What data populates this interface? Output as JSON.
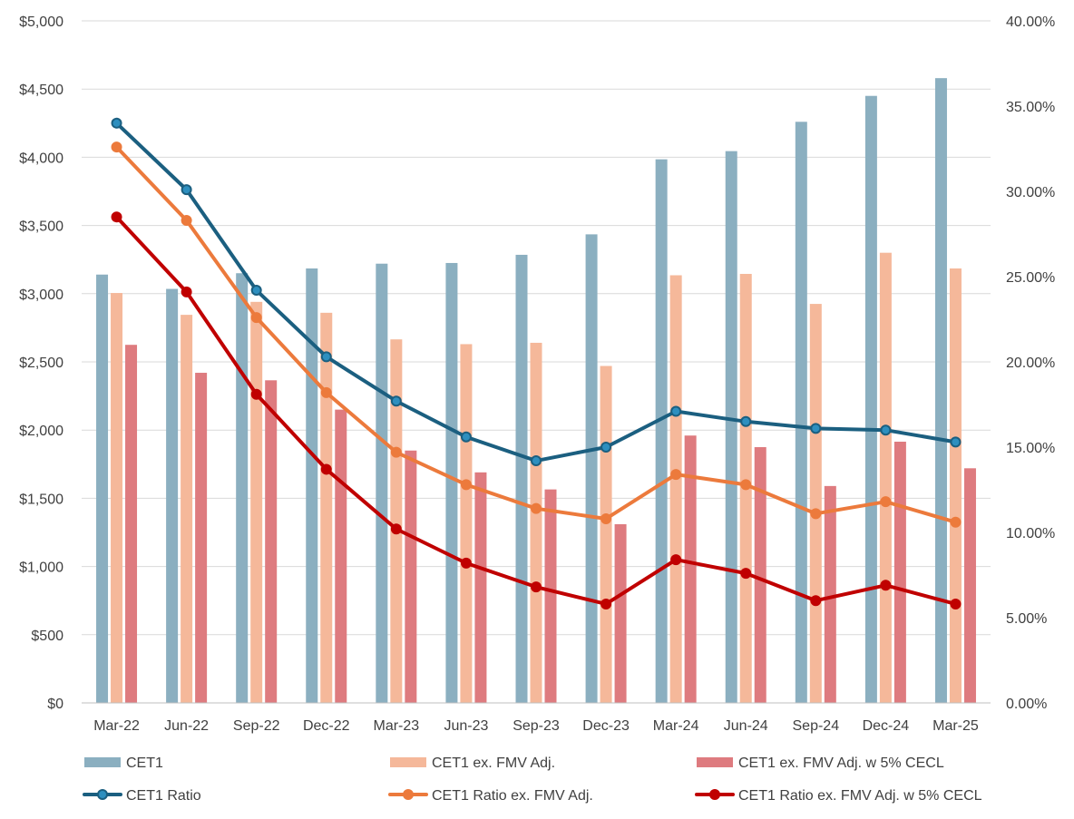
{
  "chart_data": {
    "type": "bar",
    "categories": [
      "Mar-22",
      "Jun-22",
      "Sep-22",
      "Dec-22",
      "Mar-23",
      "Jun-23",
      "Sep-23",
      "Dec-23",
      "Mar-24",
      "Jun-24",
      "Sep-24",
      "Dec-24",
      "Mar-25"
    ],
    "bar_series": [
      {
        "name": "CET1",
        "color": "#8bafc0",
        "values": [
          3140,
          3035,
          3150,
          3185,
          3220,
          3225,
          3285,
          3435,
          3985,
          4045,
          4260,
          4450,
          4580
        ]
      },
      {
        "name": "CET1 ex. FMV Adj.",
        "color": "#f5b89a",
        "values": [
          3005,
          2845,
          2940,
          2860,
          2665,
          2630,
          2640,
          2470,
          3135,
          3145,
          2925,
          3300,
          3185
        ]
      },
      {
        "name": "CET1 ex. FMV Adj. w 5% CECL",
        "color": "#de7b7f",
        "values": [
          2625,
          2420,
          2365,
          2150,
          1850,
          1690,
          1565,
          1310,
          1960,
          1875,
          1590,
          1915,
          1720
        ]
      }
    ],
    "line_series": [
      {
        "name": "CET1 Ratio",
        "color": "#1b5f80",
        "marker_fill": "#2e8fbf",
        "values": [
          34.0,
          30.1,
          24.2,
          20.3,
          17.7,
          15.6,
          14.2,
          15.0,
          17.1,
          16.5,
          16.1,
          16.0,
          15.3
        ]
      },
      {
        "name": "CET1 Ratio ex. FMV Adj.",
        "color": "#ec7a3c",
        "marker_fill": "#ec7a3c",
        "values": [
          32.6,
          28.3,
          22.6,
          18.2,
          14.7,
          12.8,
          11.4,
          10.8,
          13.4,
          12.8,
          11.1,
          11.8,
          10.6
        ]
      },
      {
        "name": "CET1 Ratio ex. FMV Adj. w 5% CECL",
        "color": "#c00000",
        "marker_fill": "#c00000",
        "values": [
          28.5,
          24.1,
          18.1,
          13.7,
          10.2,
          8.2,
          6.8,
          5.8,
          8.4,
          7.6,
          6.0,
          6.9,
          5.8
        ]
      }
    ],
    "y_left": {
      "min": 0,
      "max": 5000,
      "ticks": [
        "$0",
        "$500",
        "$1,000",
        "$1,500",
        "$2,000",
        "$2,500",
        "$3,000",
        "$3,500",
        "$4,000",
        "$4,500",
        "$5,000"
      ]
    },
    "y_right": {
      "min": 0,
      "max": 40,
      "ticks": [
        "0.00%",
        "5.00%",
        "10.00%",
        "15.00%",
        "20.00%",
        "25.00%",
        "30.00%",
        "35.00%",
        "40.00%"
      ]
    },
    "title": "",
    "grid": true,
    "legend_position": "bottom"
  }
}
